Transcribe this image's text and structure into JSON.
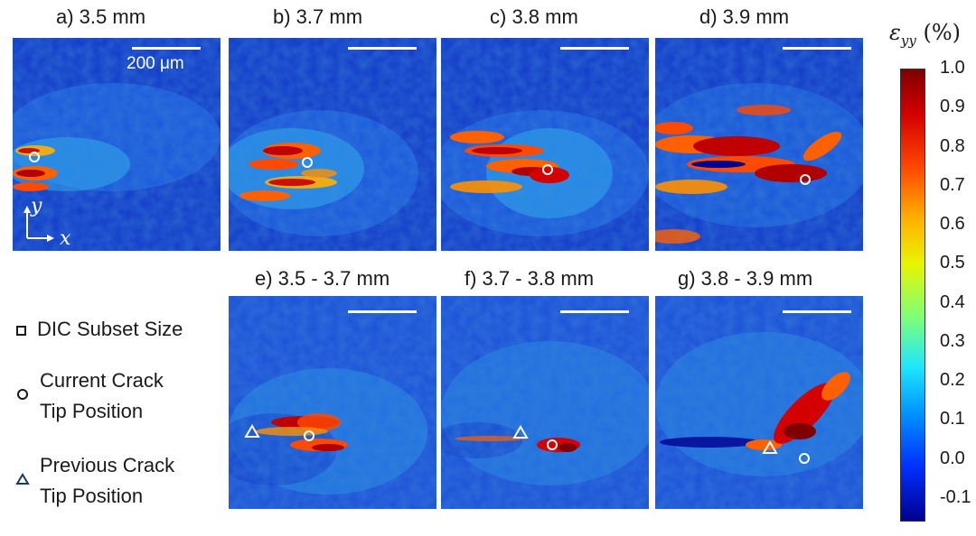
{
  "panels": [
    {
      "id": "a",
      "title": "a) 3.5 mm"
    },
    {
      "id": "b",
      "title": "b) 3.7 mm"
    },
    {
      "id": "c",
      "title": "c) 3.8 mm"
    },
    {
      "id": "d",
      "title": "d) 3.9 mm"
    },
    {
      "id": "e",
      "title": "e) 3.5 - 3.7 mm"
    },
    {
      "id": "f",
      "title": "f) 3.7 - 3.8 mm"
    },
    {
      "id": "g",
      "title": "g) 3.8 - 3.9 mm"
    }
  ],
  "scalebar_label": "200 μm",
  "axis_y": "y",
  "axis_x": "x",
  "legend": {
    "subset": "DIC Subset Size",
    "current_1": "Current Crack",
    "current_2": "Tip Position",
    "previous_1": "Previous Crack",
    "previous_2": "Tip Position"
  },
  "colorbar": {
    "title_symbol": "ε",
    "title_sub": "yy",
    "title_unit": " (%)",
    "ticks": [
      "1.0",
      "0.9",
      "0.8",
      "0.7",
      "0.6",
      "0.5",
      "0.4",
      "0.3",
      "0.2",
      "0.1",
      "0.0",
      "-0.1"
    ],
    "colors": [
      "#7f0000",
      "#d40000",
      "#ff4a00",
      "#ffb000",
      "#e8f500",
      "#7dff7a",
      "#1ee6ff",
      "#0095ff",
      "#0030ff",
      "#00008f"
    ]
  }
}
